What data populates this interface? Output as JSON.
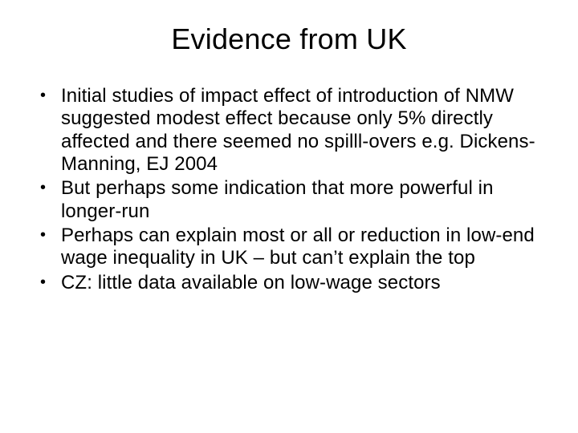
{
  "slide": {
    "title": "Evidence from UK",
    "bullets": [
      "Initial studies of impact effect of introduction of NMW suggested modest effect because only 5% directly affected and there seemed no spilll-overs e.g. Dickens-Manning, EJ 2004",
      "But perhaps some indication that more powerful in longer-run",
      "Perhaps can explain most or all or reduction in low-end wage inequality in UK – but can’t explain the top",
      "CZ: little data available on low-wage sectors"
    ],
    "background_color": "#ffffff",
    "text_color": "#000000",
    "title_fontsize": 36,
    "body_fontsize": 24,
    "font_family": "Arial"
  }
}
